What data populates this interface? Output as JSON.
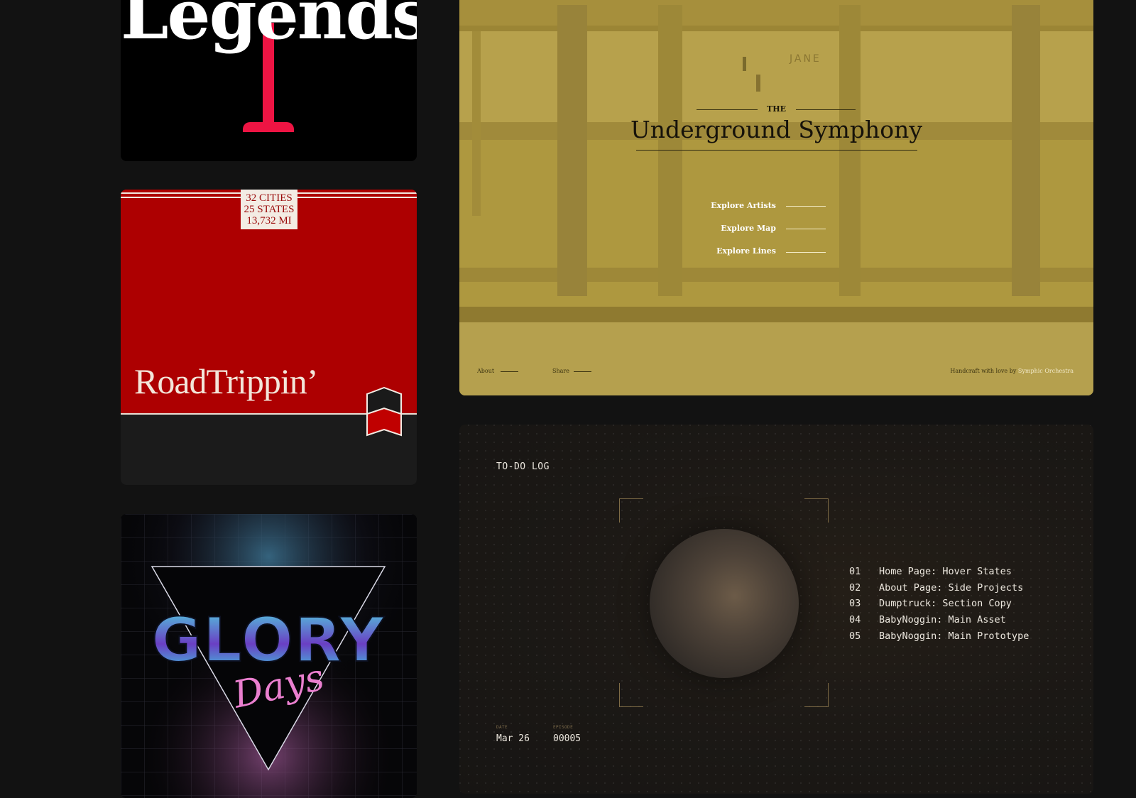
{
  "legends": {
    "title": "Legends"
  },
  "roadtrip": {
    "badge": [
      "32 CITIES",
      "25 STATES",
      "13,732  MI"
    ],
    "title": "RoadTrippin’",
    "colors": {
      "red": "#ad0001",
      "cream": "#f3ece4"
    }
  },
  "glory": {
    "title": "GLORY",
    "script": "Days"
  },
  "symphony": {
    "the": "THE",
    "title": "Underground Symphony",
    "sign": "JANE",
    "links": [
      "Explore Artists",
      "Explore Map",
      "Explore Lines"
    ],
    "footer": {
      "about": "About",
      "share": "Share",
      "credit_prefix": "Handcraft with love by",
      "credit_name": "Symphic Orchestra"
    },
    "colors": {
      "tint": "#b09a41"
    }
  },
  "todo": {
    "label": "TO-DO LOG",
    "items": [
      {
        "num": "01",
        "text": "Home Page: Hover States"
      },
      {
        "num": "02",
        "text": "About Page: Side Projects"
      },
      {
        "num": "03",
        "text": "Dumptruck: Section Copy"
      },
      {
        "num": "04",
        "text": "BabyNoggin: Main Asset"
      },
      {
        "num": "05",
        "text": "BabyNoggin: Main Prototype"
      }
    ],
    "date_label": "DATE",
    "date_value": "Mar 26",
    "episode_label": "EPISODE",
    "episode_value": "00005"
  }
}
